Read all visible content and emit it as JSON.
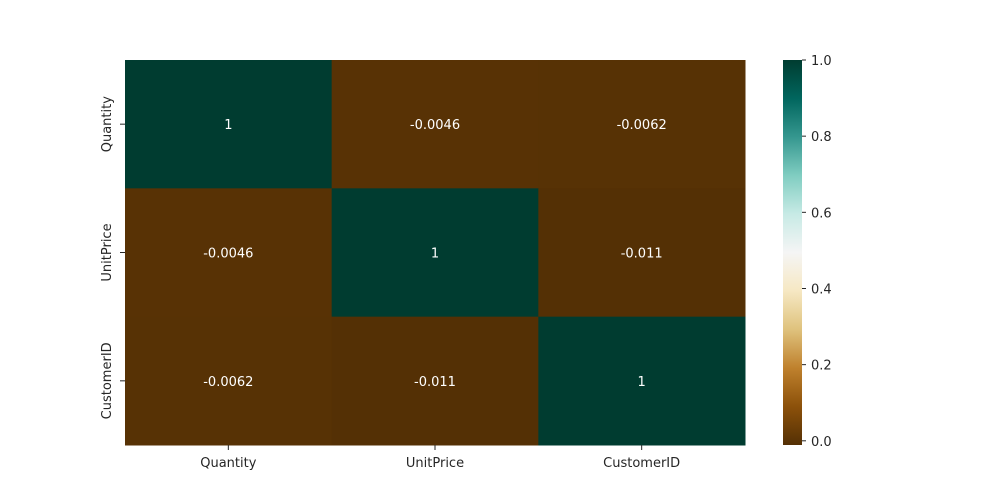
{
  "chart_data": {
    "type": "heatmap",
    "title": "",
    "xlabel": "",
    "ylabel": "",
    "x_categories": [
      "Quantity",
      "UnitPrice",
      "CustomerID"
    ],
    "y_categories": [
      "Quantity",
      "UnitPrice",
      "CustomerID"
    ],
    "values": [
      [
        1,
        -0.0046,
        -0.0062
      ],
      [
        -0.0046,
        1,
        -0.011
      ],
      [
        -0.0062,
        -0.011,
        1
      ]
    ],
    "cell_labels": [
      [
        "1",
        "-0.0046",
        "-0.0062"
      ],
      [
        "-0.0046",
        "1",
        "-0.011"
      ],
      [
        "-0.0062",
        "-0.011",
        "1"
      ]
    ],
    "annotation_color": "#ffffff",
    "colormap": "BrBG",
    "colormap_stops": [
      "#543005",
      "#8c510a",
      "#bf812d",
      "#dfc27d",
      "#f6e8c3",
      "#f5f5f5",
      "#c7eae5",
      "#80cdc1",
      "#35978f",
      "#01665e",
      "#003c30"
    ],
    "colorbar": {
      "range": [
        -0.011,
        1
      ],
      "ticks": [
        0.0,
        0.2,
        0.4,
        0.6,
        0.8,
        1.0
      ],
      "tick_labels": [
        "0.0",
        "0.2",
        "0.4",
        "0.6",
        "0.8",
        "1.0"
      ],
      "placement": "right"
    },
    "grid": false
  }
}
